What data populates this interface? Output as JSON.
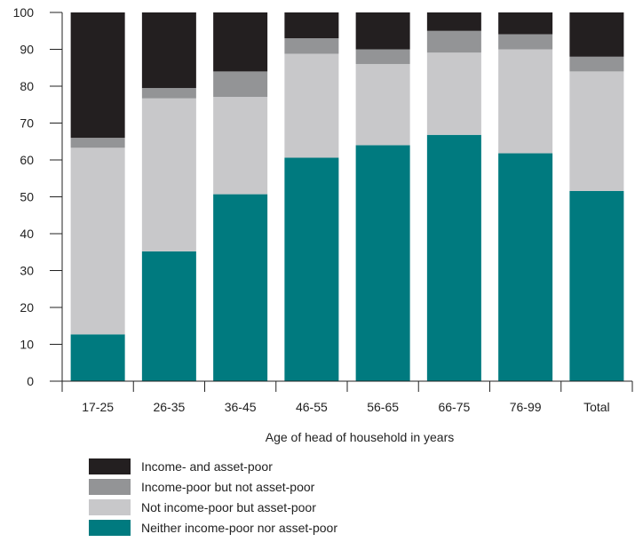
{
  "chart_data": {
    "type": "bar",
    "stacked": true,
    "title": "",
    "xlabel": "Age of head of household in years",
    "ylabel": "",
    "ylim": [
      0,
      100
    ],
    "yticks": [
      0,
      10,
      20,
      30,
      40,
      50,
      60,
      70,
      80,
      90,
      100
    ],
    "categories": [
      "17-25",
      "26-35",
      "36-45",
      "46-55",
      "56-65",
      "66-75",
      "76-99",
      "Total"
    ],
    "series": [
      {
        "name": "Neither income-poor nor asset-poor",
        "color": "#007a7f",
        "values": [
          12.7,
          35.2,
          50.7,
          60.6,
          64.0,
          66.8,
          61.8,
          51.6
        ]
      },
      {
        "name": "Not income-poor but asset-poor",
        "color": "#c8c8ca",
        "values": [
          50.6,
          41.5,
          26.4,
          28.2,
          22.0,
          22.3,
          28.2,
          32.4
        ]
      },
      {
        "name": "Income-poor but not asset-poor",
        "color": "#939496",
        "values": [
          2.7,
          2.8,
          6.9,
          4.2,
          4.0,
          5.9,
          4.1,
          4.0
        ]
      },
      {
        "name": "Income- and asset-poor",
        "color": "#231f20",
        "values": [
          34.0,
          20.5,
          16.0,
          7.0,
          10.0,
          5.0,
          5.9,
          12.0
        ]
      }
    ],
    "legend_order": [
      "Income- and asset-poor",
      "Income-poor but not asset-poor",
      "Not income-poor but asset-poor",
      "Neither income-poor nor asset-poor"
    ],
    "legend_position": "bottom-left",
    "grid": false
  }
}
